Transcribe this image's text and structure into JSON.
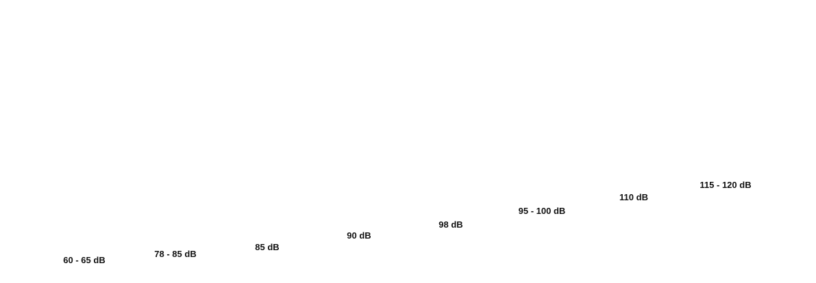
{
  "levels": [
    {
      "label": "60 - 65 dB"
    },
    {
      "label": "78 - 85 dB"
    },
    {
      "label": "85 dB"
    },
    {
      "label": "90 dB"
    },
    {
      "label": "98 dB"
    },
    {
      "label": "95 - 100 dB"
    },
    {
      "label": "110 dB"
    },
    {
      "label": "115 - 120 dB"
    }
  ]
}
